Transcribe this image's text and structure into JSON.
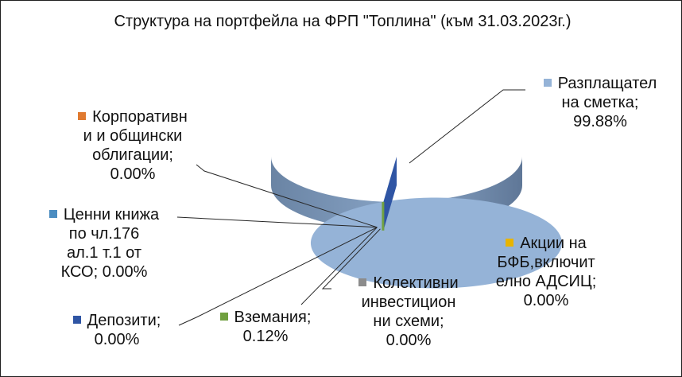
{
  "chart_data": {
    "type": "pie",
    "title_lines": [
      "Структура на портфейла на ФРП \"Топлина\" (към",
      "31.03.2023г.)"
    ],
    "series": [
      {
        "name": "Разплащателна сметка",
        "value": 99.88,
        "color": "#95b3d7",
        "label_lines": [
          "Разплащател",
          "на сметка;",
          "99.88%"
        ]
      },
      {
        "name": "Акции на БФБ,включително АДСИЦ",
        "value": 0.0,
        "color": "#e8b400",
        "label_lines": [
          "Акции на",
          "БФБ,включит",
          "елно АДСИЦ;",
          "0.00%"
        ]
      },
      {
        "name": "Колективни инвестиционни схеми",
        "value": 0.0,
        "color": "#8c8c8c",
        "label_lines": [
          "Колективни",
          "инвестицион",
          "ни схеми;",
          "0.00%"
        ]
      },
      {
        "name": "Вземания",
        "value": 0.12,
        "color": "#70a040",
        "label_lines": [
          "Вземания;",
          "0.12%"
        ]
      },
      {
        "name": "Депозити",
        "value": 0.0,
        "color": "#2f55a4",
        "label_lines": [
          "Депозити;",
          "0.00%"
        ]
      },
      {
        "name": "Ценни книжа по чл.176 ал.1 т.1 от КСО",
        "value": 0.0,
        "color": "#4a8cc0",
        "label_lines": [
          "Ценни книжа",
          "по чл.176",
          "ал.1 т.1 от",
          "КСО; 0.00%"
        ]
      },
      {
        "name": "Корпоративни и общински облигации",
        "value": 0.0,
        "color": "#e07a30",
        "label_lines": [
          "Корпоративн",
          "и и общински",
          "облигации;",
          "0.00%"
        ]
      }
    ]
  }
}
